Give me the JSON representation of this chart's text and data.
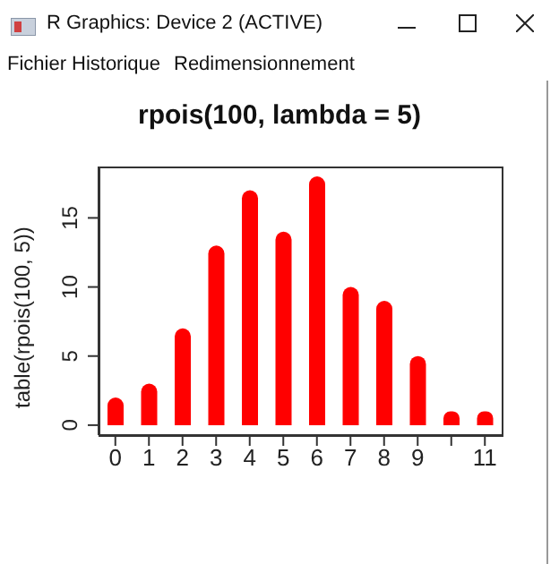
{
  "chart_data": {
    "type": "bar",
    "title": "rpois(100, lambda = 5)",
    "ylabel": "table(rpois(100, 5))",
    "categories": [
      "0",
      "1",
      "2",
      "3",
      "4",
      "5",
      "6",
      "7",
      "8",
      "9",
      null,
      "11"
    ],
    "values": [
      2,
      3,
      7,
      13,
      17,
      14,
      18,
      10,
      9,
      5,
      1,
      1
    ],
    "color": "#ff0000",
    "ylim": [
      -0.72,
      18.72
    ],
    "yticks": [
      0,
      5,
      10,
      15
    ],
    "grid": false,
    "legend": false,
    "annotations": [
      "R Graphics: Device 2 (ACTIVE)",
      "Fichier",
      "Historique",
      "Redimensionnement"
    ]
  }
}
